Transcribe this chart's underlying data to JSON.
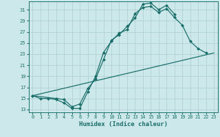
{
  "xlabel": "Humidex (Indice chaleur)",
  "background_color": "#cce8ea",
  "grid_color": "#aacccc",
  "line_color": "#1a6e6a",
  "xlim": [
    -0.5,
    23.5
  ],
  "ylim": [
    12.5,
    32.5
  ],
  "xticks": [
    0,
    1,
    2,
    3,
    4,
    5,
    6,
    7,
    8,
    9,
    10,
    11,
    12,
    13,
    14,
    15,
    16,
    17,
    18,
    19,
    20,
    21,
    22,
    23
  ],
  "yticks": [
    13,
    15,
    17,
    19,
    21,
    23,
    25,
    27,
    29,
    31
  ],
  "line1_x": [
    0,
    1,
    2,
    3,
    4,
    5,
    6,
    7,
    8,
    9,
    10,
    11,
    12,
    13,
    14,
    15,
    16,
    17,
    18,
    19,
    20,
    21,
    22
  ],
  "line1_y": [
    15.5,
    15.0,
    15.0,
    14.8,
    14.2,
    13.2,
    13.2,
    16.2,
    19.0,
    23.3,
    25.3,
    26.8,
    27.4,
    30.3,
    31.4,
    31.6,
    30.5,
    31.2,
    29.6,
    28.2,
    25.3,
    24.0,
    23.2
  ],
  "line2_x": [
    0,
    3,
    4,
    5,
    6,
    7,
    8,
    9,
    10,
    11,
    12,
    13,
    14,
    15,
    16,
    17,
    18
  ],
  "line2_y": [
    15.5,
    15.0,
    14.8,
    13.5,
    14.0,
    16.8,
    18.5,
    22.0,
    25.5,
    26.5,
    28.0,
    29.5,
    32.0,
    32.2,
    31.0,
    31.8,
    30.2
  ],
  "line3_x": [
    0,
    23
  ],
  "line3_y": [
    15.5,
    23.2
  ],
  "marker_size": 2.5,
  "line_width": 0.9,
  "tick_fontsize": 5,
  "xlabel_fontsize": 6.5
}
